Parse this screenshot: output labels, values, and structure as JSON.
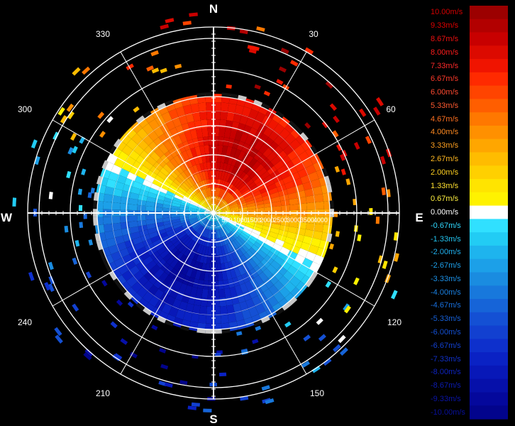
{
  "chart_data": {
    "type": "heatmap",
    "subtype": "polar-ppi-radial-velocity",
    "compass": {
      "north": "N",
      "south": "S",
      "east": "E",
      "west": "W"
    },
    "azimuth_labels": [
      "30",
      "60",
      "120",
      "150",
      "210",
      "240",
      "300",
      "330"
    ],
    "range_labels": [
      "500",
      "1000",
      "1500",
      "2000",
      "2500",
      "3000",
      "3500",
      "4000"
    ],
    "range_max": 4000,
    "velocity_range": [
      -10,
      10
    ],
    "pattern": "receding (positive) north/northeast, approaching (negative) south/southwest, zero line near west-east axis",
    "colorbar": [
      {
        "label": "10.00m/s",
        "color": "#9c0000",
        "text_color": "#d00000"
      },
      {
        "label": "9.33m/s",
        "color": "#b20000",
        "text_color": "#e00000"
      },
      {
        "label": "8.67m/s",
        "color": "#c80000",
        "text_color": "#ee1010"
      },
      {
        "label": "8.00m/s",
        "color": "#dc0a00",
        "text_color": "#ff1c1c"
      },
      {
        "label": "7.33m/s",
        "color": "#f01400",
        "text_color": "#ff2a2a"
      },
      {
        "label": "6.67m/s",
        "color": "#ff2a00",
        "text_color": "#ff3a2a"
      },
      {
        "label": "6.00m/s",
        "color": "#ff4400",
        "text_color": "#ff4a30"
      },
      {
        "label": "5.33m/s",
        "color": "#ff5e00",
        "text_color": "#ff5a30"
      },
      {
        "label": "4.67m/s",
        "color": "#ff7800",
        "text_color": "#ff7020"
      },
      {
        "label": "4.00m/s",
        "color": "#ff9000",
        "text_color": "#ff8a20"
      },
      {
        "label": "3.33m/s",
        "color": "#ffa600",
        "text_color": "#ffa020"
      },
      {
        "label": "2.67m/s",
        "color": "#ffbc00",
        "text_color": "#ffb820"
      },
      {
        "label": "2.00m/s",
        "color": "#ffd000",
        "text_color": "#ffd020"
      },
      {
        "label": "1.33m/s",
        "color": "#ffe400",
        "text_color": "#ffe030"
      },
      {
        "label": "0.67m/s",
        "color": "#fff200",
        "text_color": "#fff040"
      },
      {
        "label": "0.00m/s",
        "color": "#ffffff",
        "text_color": "#ffffff"
      },
      {
        "label": "-0.67m/s",
        "color": "#30e0ff",
        "text_color": "#30d8ff"
      },
      {
        "label": "-1.33m/s",
        "color": "#22ccf4",
        "text_color": "#22c4f0"
      },
      {
        "label": "-2.00m/s",
        "color": "#1eb4ee",
        "text_color": "#20b0ee"
      },
      {
        "label": "-2.67m/s",
        "color": "#1ca0e8",
        "text_color": "#1ea0ea"
      },
      {
        "label": "-3.33m/s",
        "color": "#1a8ce0",
        "text_color": "#1c90e6"
      },
      {
        "label": "-4.00m/s",
        "color": "#1878dc",
        "text_color": "#1a80e2"
      },
      {
        "label": "-4.67m/s",
        "color": "#1664d8",
        "text_color": "#1870de"
      },
      {
        "label": "-5.33m/s",
        "color": "#1450d4",
        "text_color": "#1660d8"
      },
      {
        "label": "-6.00m/s",
        "color": "#1240d0",
        "text_color": "#1450d4"
      },
      {
        "label": "-6.67m/s",
        "color": "#0e30cc",
        "text_color": "#1240d0"
      },
      {
        "label": "-7.33m/s",
        "color": "#0a22c4",
        "text_color": "#1030c8"
      },
      {
        "label": "-8.00m/s",
        "color": "#0818b8",
        "text_color": "#0e24c0"
      },
      {
        "label": "-8.67m/s",
        "color": "#0610aa",
        "text_color": "#0c1cb4"
      },
      {
        "label": "-9.33m/s",
        "color": "#04089c",
        "text_color": "#0a14a8"
      },
      {
        "label": "-10.00m/s",
        "color": "#02048c",
        "text_color": "#08109c"
      }
    ]
  }
}
